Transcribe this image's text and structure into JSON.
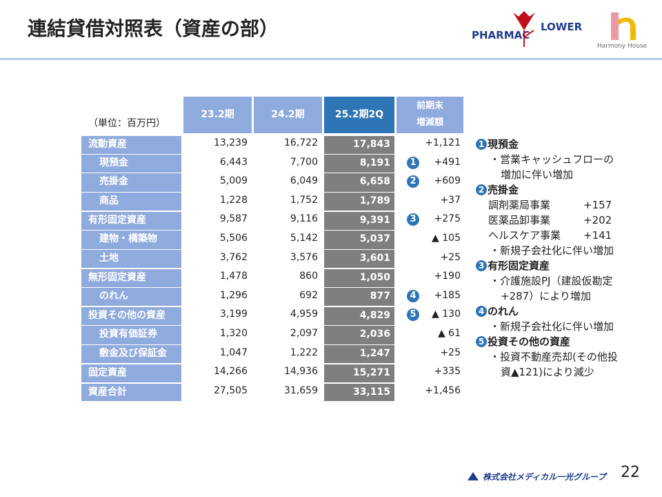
{
  "header": {
    "title": "連結貸借対照表（資産の部）",
    "logo_left": "PHARMAC",
    "logo_right": "LOWER",
    "logo_brand": "Harmony House"
  },
  "table": {
    "unit": "（単位：百万円）",
    "columns": [
      "23.2期",
      "24.2期",
      "25.2期2Q"
    ],
    "change_header": [
      "前期末",
      "増減額"
    ],
    "rows": [
      {
        "label": "流動資産",
        "values": [
          "13,239",
          "16,722",
          "17,843"
        ],
        "change": "+1,121"
      },
      {
        "label": "現預金",
        "values": [
          "6,443",
          "7,700",
          "8,191"
        ],
        "change": "+491",
        "marker": "1"
      },
      {
        "label": "売掛金",
        "values": [
          "5,009",
          "6,049",
          "6,658"
        ],
        "change": "+609",
        "marker": "2"
      },
      {
        "label": "商品",
        "values": [
          "1,228",
          "1,752",
          "1,789"
        ],
        "change": "+37"
      },
      {
        "label": "有形固定資産",
        "values": [
          "9,587",
          "9,116",
          "9,391"
        ],
        "change": "+275",
        "marker": "3"
      },
      {
        "label": "建物・構築物",
        "values": [
          "5,506",
          "5,142",
          "5,037"
        ],
        "change": "▲ 105"
      },
      {
        "label": "土地",
        "values": [
          "3,762",
          "3,576",
          "3,601"
        ],
        "change": "+25"
      },
      {
        "label": "無形固定資産",
        "values": [
          "1,478",
          "860",
          "1,050"
        ],
        "change": "+190"
      },
      {
        "label": "のれん",
        "values": [
          "1,296",
          "692",
          "877"
        ],
        "change": "+185",
        "marker": "4"
      },
      {
        "label": "投資その他の資産",
        "values": [
          "3,199",
          "4,959",
          "4,829"
        ],
        "change": "▲ 130",
        "marker": "5"
      },
      {
        "label": "投資有価証券",
        "values": [
          "1,320",
          "2,097",
          "2,036"
        ],
        "change": "▲ 61"
      },
      {
        "label": "敷金及び保証金",
        "values": [
          "1,047",
          "1,222",
          "1,247"
        ],
        "change": "+25"
      },
      {
        "label": "固定資産",
        "values": [
          "14,266",
          "14,936",
          "15,271"
        ],
        "change": "+335"
      },
      {
        "label": "資産合計",
        "values": [
          "27,505",
          "31,659",
          "33,115"
        ],
        "change": "+1,456"
      }
    ]
  },
  "notes": [
    {
      "marker": "1",
      "title": "現預金",
      "lines": [
        "・営業キャッシュフローの",
        "増加に伴い増加"
      ]
    },
    {
      "marker": "2",
      "title": "売掛金",
      "segments": [
        [
          "調剤薬局事業",
          "+157"
        ],
        [
          "医薬品卸事業",
          "+202"
        ],
        [
          "ヘルスケア事業",
          "+141"
        ]
      ],
      "lines": [
        "・新規子会社化に伴い増加"
      ]
    },
    {
      "marker": "3",
      "title": "有形固定資産",
      "lines": [
        "・介護施設PJ（建設仮勘定",
        "+287）により増加"
      ]
    },
    {
      "marker": "4",
      "title": "のれん",
      "lines": [
        "・新規子会社化に伴い増加"
      ]
    },
    {
      "marker": "5",
      "title": "投資その他の資産",
      "lines": [
        "・投資不動産売却(その他投",
        "資▲121)により減少"
      ]
    }
  ],
  "footer": {
    "company": "株式会社メディカル一光グループ",
    "page": "22"
  }
}
